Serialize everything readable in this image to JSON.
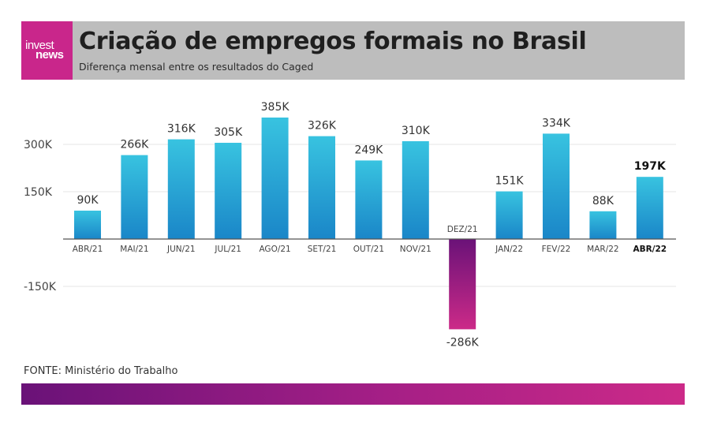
{
  "header": {
    "logo_line1": "invest",
    "logo_line2": "news",
    "title": "Criação de empregos formais no Brasil",
    "subtitle": "Diferença mensal entre os resultados do Caged"
  },
  "source": "FONTE: Ministério do Trabalho",
  "colors": {
    "positive_bar_top": "#38c3e0",
    "positive_bar_bottom": "#1a86c8",
    "negative_bar_top": "#6a1278",
    "negative_bar_bottom": "#cc2a88",
    "header_bg": "#bdbdbd",
    "logo_bg": "#c9268b"
  },
  "chart_data": {
    "type": "bar",
    "categories": [
      "ABR/21",
      "MAI/21",
      "JUN/21",
      "JUL/21",
      "AGO/21",
      "SET/21",
      "OUT/21",
      "NOV/21",
      "DEZ/21",
      "JAN/22",
      "FEV/22",
      "MAR/22",
      "ABR/22"
    ],
    "values": [
      90,
      266,
      316,
      305,
      385,
      326,
      249,
      310,
      -286,
      151,
      334,
      88,
      197
    ],
    "value_labels": [
      "90K",
      "266K",
      "316K",
      "305K",
      "385K",
      "326K",
      "249K",
      "310K",
      "-286K",
      "151K",
      "334K",
      "88K",
      "197K"
    ],
    "highlight_index": 12,
    "y_ticks": [
      300,
      150,
      -150
    ],
    "y_tick_labels": [
      "300K",
      "150K",
      "-150K"
    ],
    "ylim": [
      -300,
      400
    ],
    "grid": true,
    "xlabel": "",
    "ylabel": ""
  }
}
